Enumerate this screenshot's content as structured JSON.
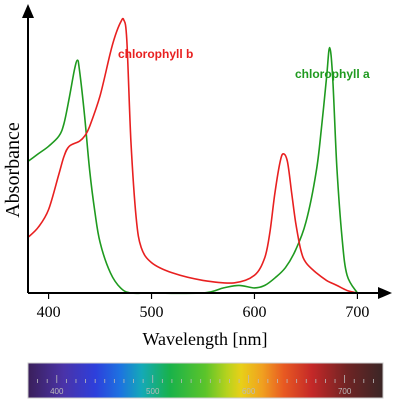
{
  "chart_data": {
    "type": "line",
    "xlabel": "Wavelength [nm]",
    "ylabel": "Absorbance",
    "xlim": [
      380,
      720
    ],
    "ylim": [
      0,
      1
    ],
    "xticks": [
      400,
      500,
      600,
      700
    ],
    "grid": false,
    "series": [
      {
        "name": "chlorophyll a",
        "color": "#1f9a1f",
        "x": [
          380,
          390,
          400,
          410,
          415,
          420,
          425,
          428,
          430,
          435,
          440,
          445,
          450,
          460,
          470,
          480,
          500,
          550,
          570,
          585,
          600,
          610,
          620,
          630,
          640,
          650,
          660,
          665,
          670,
          673,
          676,
          680,
          685,
          690,
          700
        ],
        "y": [
          0.52,
          0.55,
          0.58,
          0.62,
          0.67,
          0.77,
          0.88,
          0.92,
          0.88,
          0.7,
          0.48,
          0.32,
          0.2,
          0.08,
          0.02,
          0.0,
          0.0,
          0.0,
          0.02,
          0.03,
          0.02,
          0.03,
          0.06,
          0.1,
          0.17,
          0.28,
          0.48,
          0.65,
          0.85,
          0.97,
          0.85,
          0.5,
          0.22,
          0.07,
          0.0
        ]
      },
      {
        "name": "chlorophyll b",
        "color": "#e82020",
        "x": [
          380,
          390,
          400,
          410,
          415,
          420,
          430,
          435,
          440,
          450,
          460,
          465,
          470,
          473,
          476,
          480,
          485,
          490,
          500,
          520,
          550,
          580,
          600,
          610,
          615,
          620,
          625,
          628,
          632,
          636,
          640,
          645,
          650,
          660,
          670,
          680,
          690,
          700
        ],
        "y": [
          0.22,
          0.26,
          0.33,
          0.47,
          0.54,
          0.58,
          0.6,
          0.62,
          0.66,
          0.78,
          0.95,
          1.02,
          1.07,
          1.08,
          1.0,
          0.6,
          0.3,
          0.18,
          0.12,
          0.08,
          0.05,
          0.04,
          0.07,
          0.14,
          0.24,
          0.4,
          0.52,
          0.55,
          0.52,
          0.4,
          0.28,
          0.17,
          0.12,
          0.08,
          0.05,
          0.03,
          0.01,
          0.0
        ]
      }
    ],
    "spectrum_bar": {
      "tick_labels": [
        "400",
        "500",
        "600",
        "700"
      ]
    }
  }
}
